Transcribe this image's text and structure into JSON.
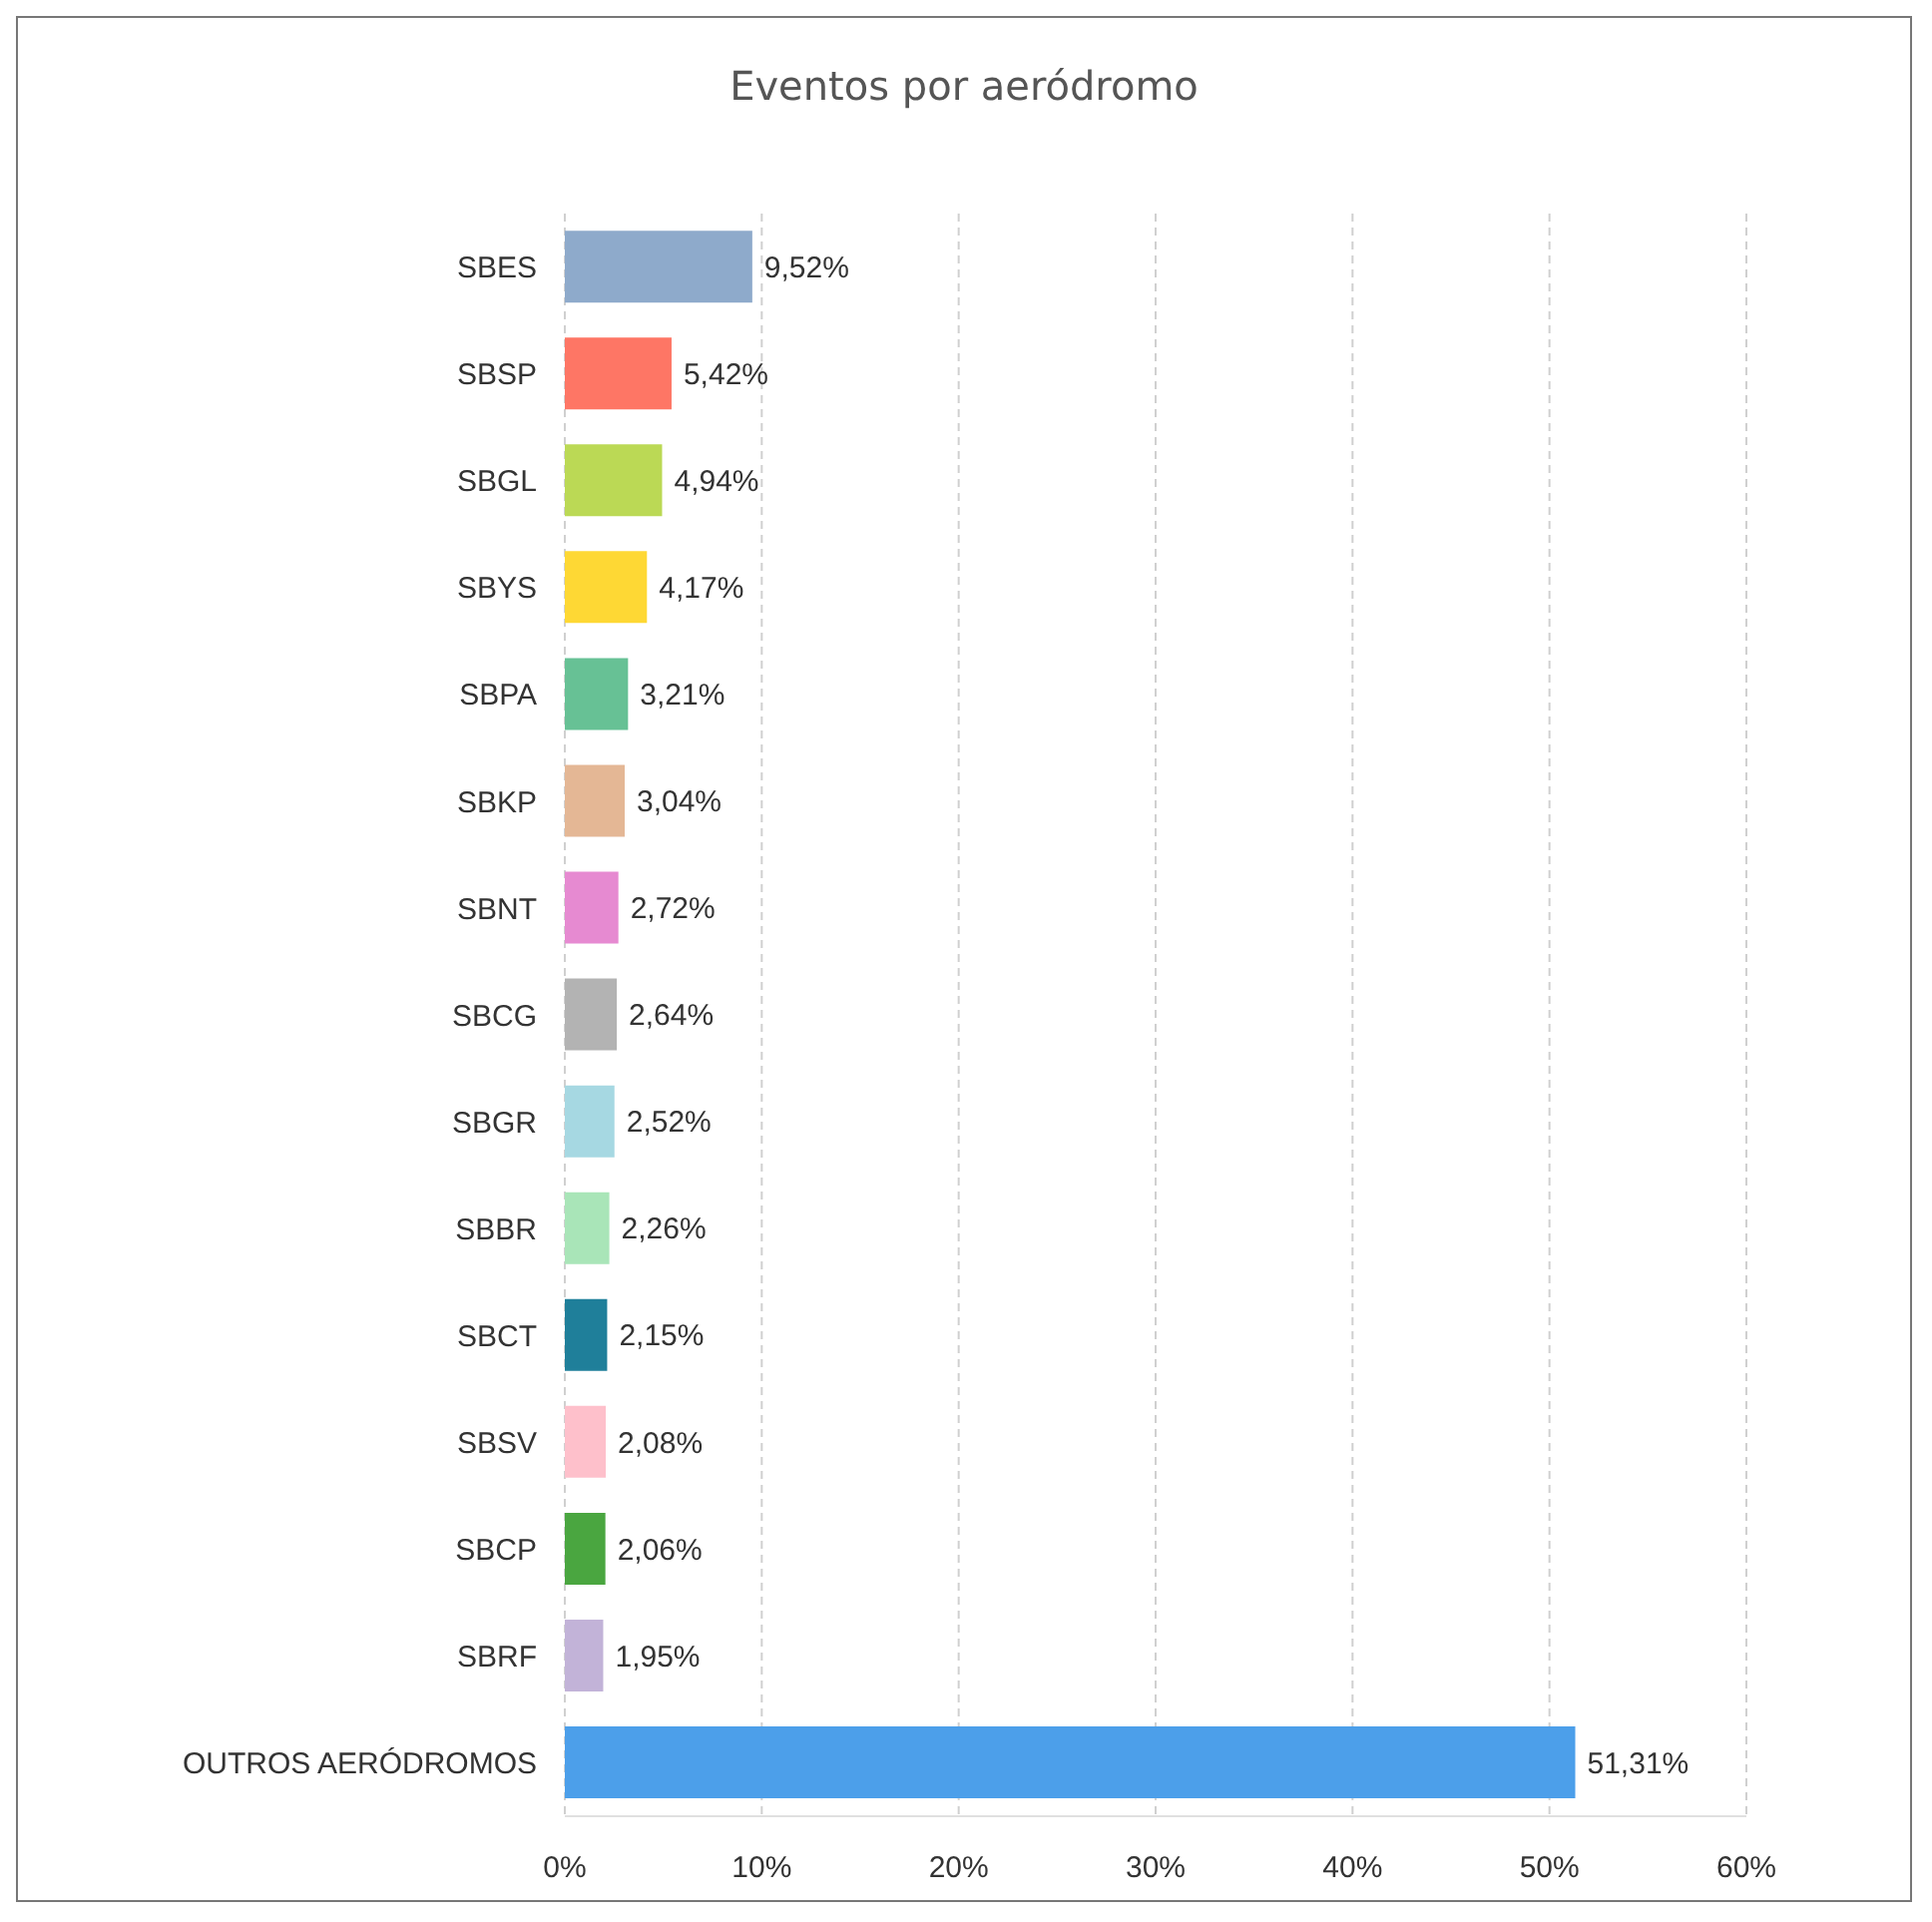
{
  "chart_data": {
    "type": "bar",
    "orientation": "horizontal",
    "title": "Eventos por aeródromo",
    "categories": [
      "SBES",
      "SBSP",
      "SBGL",
      "SBYS",
      "SBPA",
      "SBKP",
      "SBNT",
      "SBCG",
      "SBGR",
      "SBBR",
      "SBCT",
      "SBSV",
      "SBCP",
      "SBRF",
      "OUTROS AERÓDROMOS"
    ],
    "values": [
      9.52,
      5.42,
      4.94,
      4.17,
      3.21,
      3.04,
      2.72,
      2.64,
      2.52,
      2.26,
      2.15,
      2.08,
      2.06,
      1.95,
      51.31
    ],
    "value_labels": [
      "9,52%",
      "5,42%",
      "4,94%",
      "4,17%",
      "3,21%",
      "3,04%",
      "2,72%",
      "2,64%",
      "2,52%",
      "2,26%",
      "2,15%",
      "2,08%",
      "2,06%",
      "1,95%",
      "51,31%"
    ],
    "colors": [
      "#8eaacb",
      "#fe7665",
      "#bbd955",
      "#fed834",
      "#67c195",
      "#e4b795",
      "#e68ad1",
      "#b3b3b3",
      "#a6d8e2",
      "#a9e5b8",
      "#1f7f9a",
      "#fec0cb",
      "#4aa640",
      "#c2b3d8",
      "#4c9fea"
    ],
    "xlim": [
      0,
      60
    ],
    "xticks": [
      {
        "value": 0,
        "label": "0%"
      },
      {
        "value": 10,
        "label": "10%"
      },
      {
        "value": 20,
        "label": "20%"
      },
      {
        "value": 30,
        "label": "30%"
      },
      {
        "value": 40,
        "label": "40%"
      },
      {
        "value": 50,
        "label": "50%"
      },
      {
        "value": 60,
        "label": "60%"
      }
    ],
    "grid": "x",
    "legend": false
  }
}
